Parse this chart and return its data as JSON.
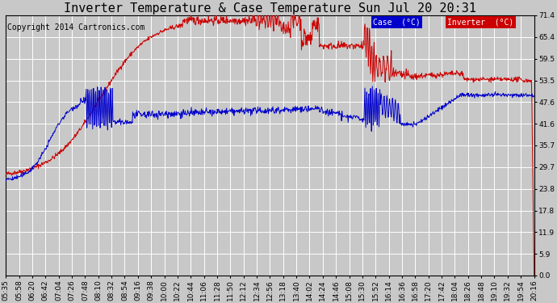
{
  "title": "Inverter Temperature & Case Temperature Sun Jul 20 20:31",
  "copyright": "Copyright 2014 Cartronics.com",
  "background_color": "#c8c8c8",
  "plot_bg_color": "#c8c8c8",
  "grid_color": "#ffffff",
  "yticks": [
    0.0,
    5.9,
    11.9,
    17.8,
    23.8,
    29.7,
    35.7,
    41.6,
    47.6,
    53.5,
    59.5,
    65.4,
    71.4
  ],
  "ylim": [
    0.0,
    71.4
  ],
  "case_color": "#0000cc",
  "inverter_color": "#cc0000",
  "legend_case_bg": "#0000cc",
  "legend_inverter_bg": "#cc0000",
  "legend_text_color": "#ffffff",
  "title_fontsize": 11,
  "copyright_fontsize": 7,
  "xtick_labels": [
    "05:35",
    "05:58",
    "06:20",
    "06:42",
    "07:04",
    "07:26",
    "07:48",
    "08:10",
    "08:32",
    "08:54",
    "09:16",
    "09:38",
    "10:00",
    "10:22",
    "10:44",
    "11:06",
    "11:28",
    "11:50",
    "12:12",
    "12:34",
    "12:56",
    "13:18",
    "13:40",
    "14:02",
    "14:24",
    "14:46",
    "15:08",
    "15:30",
    "15:52",
    "16:14",
    "16:36",
    "16:58",
    "17:20",
    "17:42",
    "18:04",
    "18:26",
    "18:48",
    "19:10",
    "19:32",
    "19:54",
    "20:16"
  ]
}
